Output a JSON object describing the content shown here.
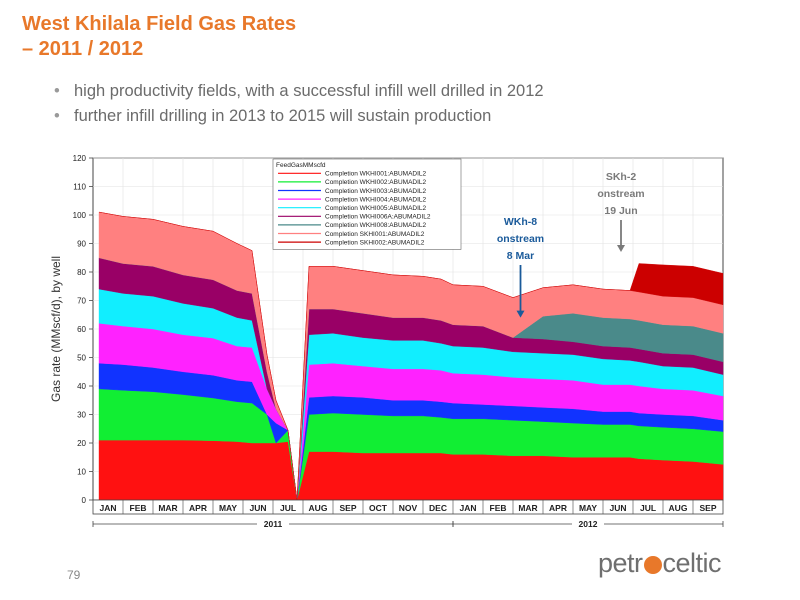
{
  "slide": {
    "title_line1": "West Khilala Field Gas Rates",
    "title_line2": "– 2011 / 2012",
    "bullets": [
      "high productivity fields, with a successful infill well drilled in 2012",
      "further infill drilling in 2013 to 2015 will sustain production"
    ],
    "bullet_glyph": "•",
    "page_number": "79",
    "logo": {
      "before": "petr",
      "after": "celtic",
      "accent": "#e8782a"
    }
  },
  "chart_data": {
    "type": "area",
    "stacked": true,
    "ylabel": "Gas rate (MMscf/d), by well",
    "ylim": [
      0,
      120
    ],
    "yticks": [
      0,
      10,
      20,
      30,
      40,
      50,
      60,
      70,
      80,
      90,
      100,
      110,
      120
    ],
    "xlim": [
      0,
      21
    ],
    "month_labels": [
      "JAN",
      "FEB",
      "MAR",
      "APR",
      "MAY",
      "JUN",
      "JUL",
      "AUG",
      "SEP",
      "OCT",
      "NOV",
      "DEC",
      "JAN",
      "FEB",
      "MAR",
      "APR",
      "MAY",
      "JUN",
      "JUL",
      "AUG",
      "SEP"
    ],
    "year_labels": [
      {
        "label": "2011",
        "start": 0,
        "end": 12
      },
      {
        "label": "2012",
        "start": 12,
        "end": 21
      }
    ],
    "legend_title": "FeedGasMMscfd",
    "legend_position": "top-center",
    "grid": true,
    "x": [
      0.2,
      1,
      2,
      3,
      4,
      4.8,
      5.3,
      5.8,
      6.1,
      6.5,
      6.8,
      7.2,
      8,
      9,
      10,
      11,
      11.6,
      12,
      13,
      14,
      15,
      16,
      17,
      17.9,
      18.2,
      19,
      20,
      21
    ],
    "series": [
      {
        "name": "Completion WKHI001:ABUMADIL2",
        "color": "#ff1111",
        "values": [
          21,
          21,
          21,
          21,
          20.8,
          20.5,
          20,
          20,
          20,
          20.5,
          0,
          17,
          17,
          16.5,
          16.5,
          16.5,
          16.5,
          16,
          16,
          15.5,
          15.5,
          15,
          15,
          15,
          14.5,
          14,
          13.5,
          12.5
        ]
      },
      {
        "name": "Completion WKHI002:ABUMADIL2",
        "color": "#11ee33",
        "values": [
          18,
          17.5,
          17,
          16,
          15,
          14,
          14,
          10,
          0,
          4,
          0,
          13,
          13.5,
          13.5,
          13,
          13,
          12.5,
          12.5,
          12.5,
          12.5,
          12,
          12,
          11.5,
          11.5,
          11.5,
          11.5,
          11.5,
          11.5
        ]
      },
      {
        "name": "Completion WKHI003:ABUMADIL2",
        "color": "#1133ff",
        "values": [
          9,
          9,
          8.5,
          8,
          8,
          7.5,
          7.5,
          0,
          7,
          0,
          0,
          6,
          6,
          6,
          5.5,
          5.5,
          5.5,
          5.5,
          5,
          5,
          5,
          5,
          4.5,
          4.5,
          4.5,
          4.5,
          4.5,
          4
        ]
      },
      {
        "name": "Completion WKHI004:ABUMADIL2",
        "color": "#ff22ff",
        "values": [
          14,
          13.5,
          13.5,
          13,
          13,
          12,
          12,
          9,
          5,
          0,
          0,
          11.5,
          11.5,
          11,
          11,
          11,
          11,
          10.5,
          10.5,
          10,
          10,
          10,
          9.5,
          9.5,
          9.5,
          9,
          9,
          8.5
        ]
      },
      {
        "name": "Completion WKHI005:ABUMADIL2",
        "color": "#11eeff",
        "values": [
          12,
          11.5,
          11.5,
          11,
          10.5,
          10,
          9.5,
          0,
          0,
          0,
          0,
          10.5,
          10.5,
          10,
          10,
          10,
          9.5,
          9.5,
          9.5,
          9,
          9,
          9,
          9,
          8.5,
          8.5,
          8,
          8,
          7.5
        ]
      },
      {
        "name": "Completion WKHI006A:ABUMADIL2",
        "color": "#990066",
        "values": [
          11,
          10.5,
          10.5,
          10,
          10,
          9.5,
          9.5,
          6,
          0,
          0,
          0,
          9,
          8.5,
          8.5,
          8,
          8,
          8,
          7.5,
          7.5,
          5,
          5,
          4.5,
          4.5,
          4.5,
          4.5,
          4.5,
          4.5,
          4.5
        ]
      },
      {
        "name": "Completion WKHI008:ABUMADIL2",
        "color": "#4a8a8a",
        "values": [
          0,
          0,
          0,
          0,
          0,
          0,
          0,
          0,
          0,
          0,
          0,
          0,
          0,
          0,
          0,
          0,
          0,
          0,
          0,
          0,
          8,
          10,
          10,
          10,
          10,
          10,
          10,
          10
        ]
      },
      {
        "name": "Completion SKHI001:ABUMADIL2",
        "color": "#ff8080",
        "values": [
          16,
          16.5,
          16.5,
          17,
          17,
          16.5,
          15,
          6,
          3,
          0,
          0,
          15,
          15,
          15,
          15,
          14.5,
          14.5,
          14,
          14,
          14,
          10,
          10,
          10,
          10,
          10,
          10,
          10,
          10
        ]
      },
      {
        "name": "Completion SKHI002:ABUMADIL2",
        "color": "#cc0000",
        "values": [
          0,
          0,
          0,
          0,
          0,
          0,
          0,
          0,
          0,
          0,
          0,
          0,
          0,
          0,
          0,
          0,
          0,
          0,
          0,
          0,
          0,
          0,
          0,
          0,
          10,
          11,
          11,
          11
        ]
      }
    ],
    "annotations": [
      {
        "lines": [
          "WKh-8",
          "onstream",
          "8 Mar"
        ],
        "color": "#1a5a9a",
        "x": 14.25,
        "arrow_to_y": 64
      },
      {
        "lines": [
          "SKh-2",
          "onstream",
          "19 Jun"
        ],
        "color": "#7a7a7a",
        "x": 17.6,
        "arrow_to_y": 87
      }
    ]
  }
}
